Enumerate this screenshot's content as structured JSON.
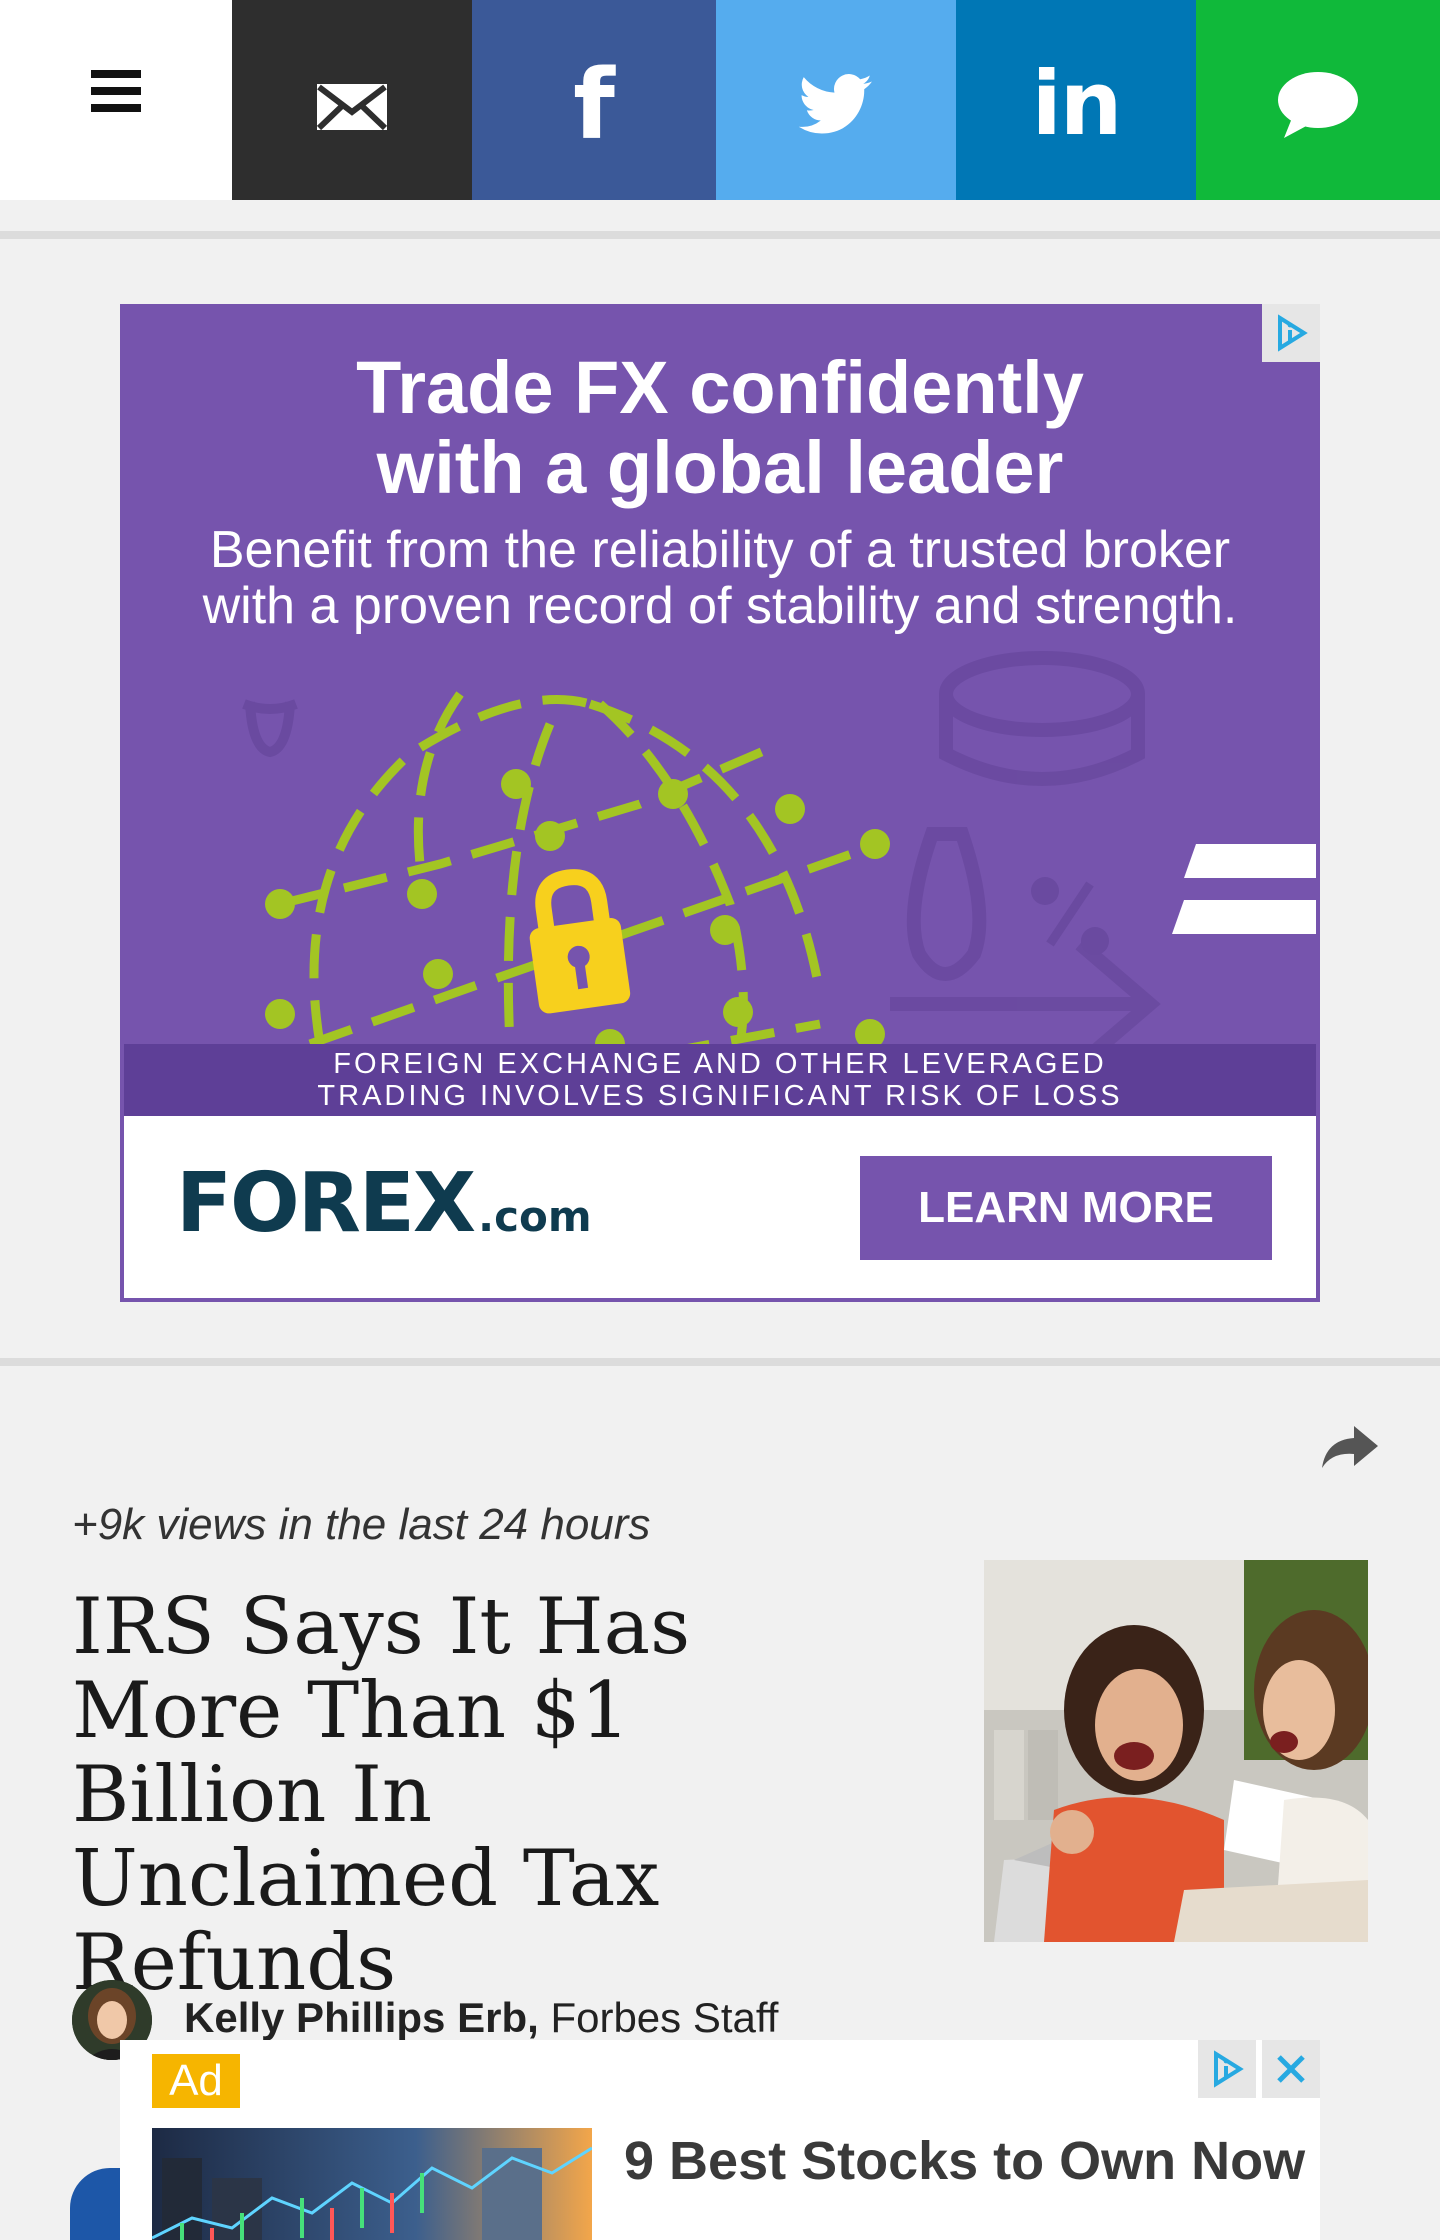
{
  "share_bar": {
    "menu_icon": "hamburger-menu-icon",
    "buttons": [
      {
        "name": "email",
        "icon": "envelope-icon",
        "color": "#2e2e2e"
      },
      {
        "name": "facebook",
        "glyph": "f",
        "icon": "facebook-icon",
        "color": "#3b5998"
      },
      {
        "name": "twitter",
        "icon": "twitter-bird-icon",
        "color": "#55acee"
      },
      {
        "name": "linkedin",
        "glyph": "in",
        "icon": "linkedin-icon",
        "color": "#0077b5"
      },
      {
        "name": "messages",
        "icon": "speech-bubble-icon",
        "color": "#10b93a"
      }
    ]
  },
  "ad_banner": {
    "headline_line1": "Trade FX confidently",
    "headline_line2": "with a global leader",
    "sub_line1": "Benefit from the reliability of a trusted broker",
    "sub_line2": "with a proven record of stability and strength.",
    "risk_line1": "FOREIGN EXCHANGE AND OTHER LEVERAGED",
    "risk_line2": "TRADING INVOLVES SIGNIFICANT RISK OF LOSS",
    "brand_main": "FOREX",
    "brand_suffix": ".com",
    "cta": "LEARN MORE",
    "background_color": "#7654ad",
    "accent_green": "#a3c523",
    "lock_yellow": "#f7d01d"
  },
  "article": {
    "views": "+9k views in the last 24 hours",
    "headline": "IRS Says It Has More Than $1 Billion In Unclaimed Tax Refunds",
    "author_name": "Kelly Phillips Erb,",
    "author_role": "Forbes Staff"
  },
  "sticky_ad": {
    "badge": "Ad",
    "title": "9 Best Stocks to Own Now"
  }
}
